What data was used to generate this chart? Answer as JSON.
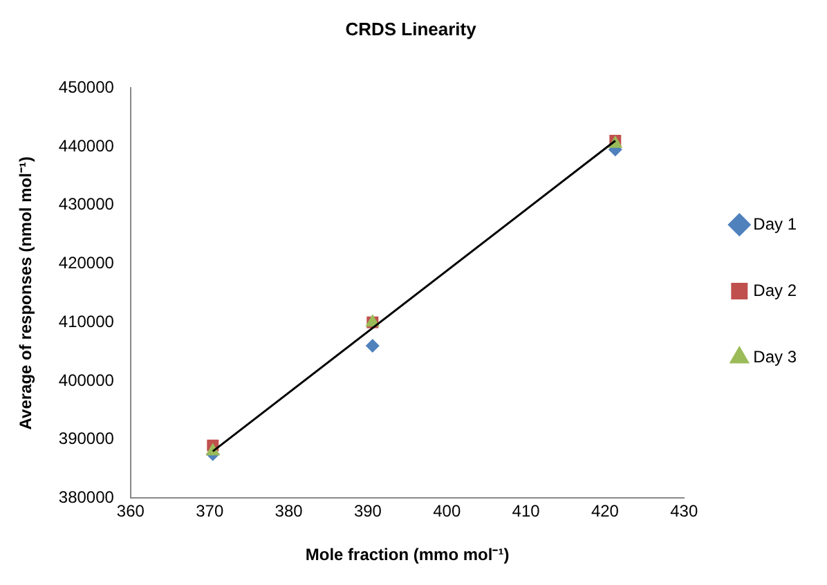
{
  "chart_data": {
    "type": "scatter",
    "title": "CRDS Linearity",
    "xlabel": "Mole fraction (mmo mol⁻¹)",
    "ylabel": "Average of responses (nmol mol⁻¹)",
    "xlim": [
      360,
      430
    ],
    "xticks": [
      360,
      370,
      380,
      390,
      400,
      410,
      420,
      430
    ],
    "ylim": [
      380000,
      450000
    ],
    "yticks": [
      380000,
      390000,
      400000,
      410000,
      420000,
      430000,
      440000,
      450000
    ],
    "grid": false,
    "legend": "right",
    "series": [
      {
        "name": "Day 1",
        "color": "#4f81bd",
        "marker": "diamond",
        "x": [
          370.4,
          390.6,
          421.3
        ],
        "values": [
          387500,
          406000,
          439500
        ]
      },
      {
        "name": "Day 2",
        "color": "#c0504d",
        "marker": "square",
        "x": [
          370.4,
          390.6,
          421.3
        ],
        "values": [
          389000,
          410000,
          441000
        ]
      },
      {
        "name": "Day 3",
        "color": "#9bbb59",
        "marker": "triangle",
        "x": [
          370.4,
          390.6,
          421.3
        ],
        "values": [
          388000,
          410000,
          440500
        ]
      },
      {
        "type": "line",
        "color": "#000000",
        "marker": "none",
        "x": [
          370.4,
          421.3
        ],
        "values": [
          388000,
          441000
        ]
      }
    ]
  }
}
